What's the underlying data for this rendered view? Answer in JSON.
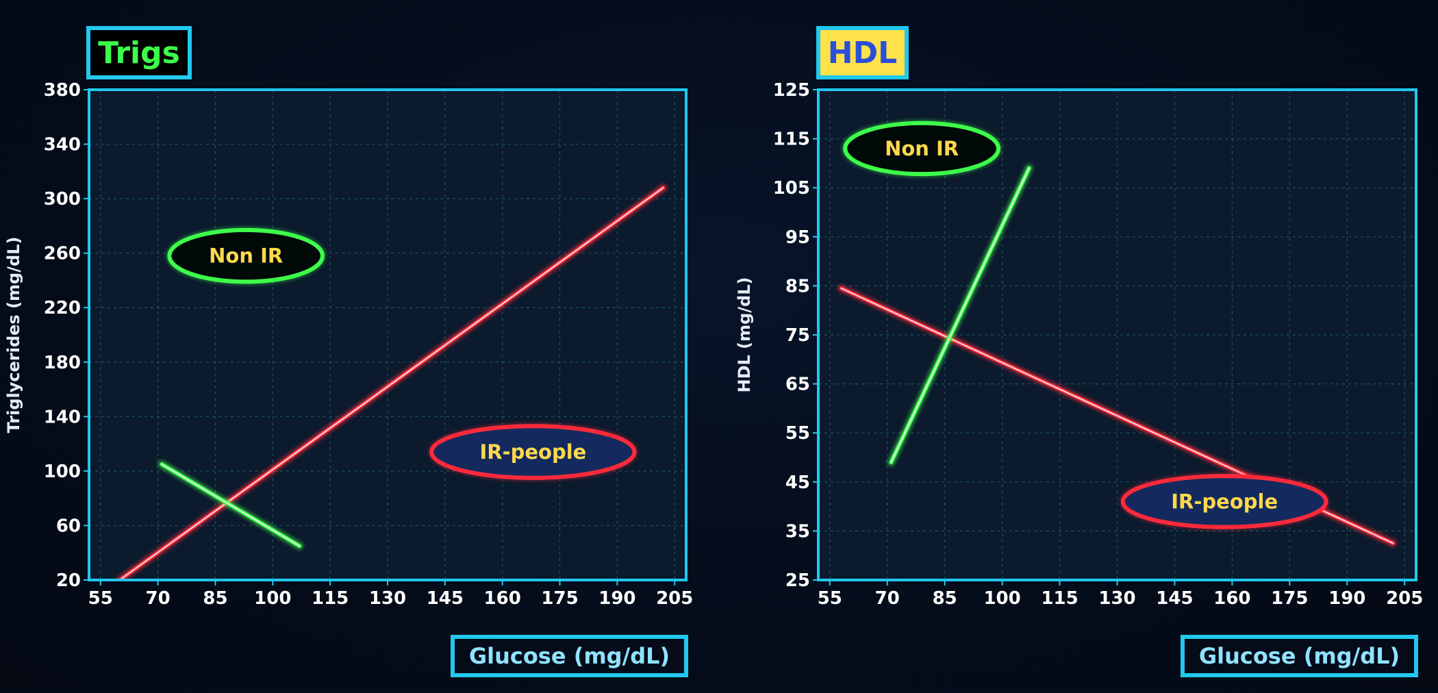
{
  "colors": {
    "frame": "#22c8ee",
    "grid": "#1d5560",
    "plot_bg": "#0b1a2d",
    "ir_line": "#ff2a3a",
    "non_ir_line": "#3dff4a",
    "label_text": "#ffd84d",
    "tick_text": "#ffffff"
  },
  "chart_data": [
    {
      "type": "line",
      "title": "Trigs",
      "title_style": {
        "text_color": "#3dff4a",
        "fill": "#000000"
      },
      "xlabel": "Glucose  (mg/dL)",
      "ylabel": "Triglycerides  (mg/dL)",
      "xlim": [
        52,
        208
      ],
      "ylim": [
        20,
        380
      ],
      "xticks": [
        55,
        70,
        85,
        100,
        115,
        130,
        145,
        160,
        175,
        190,
        205
      ],
      "yticks": [
        20,
        60,
        100,
        140,
        180,
        220,
        260,
        300,
        340,
        380
      ],
      "grid": true,
      "series": [
        {
          "key": "ir",
          "color": "#ff2a3a",
          "x": [
            60,
            202
          ],
          "y": [
            20,
            308
          ]
        },
        {
          "key": "nonir",
          "color": "#3dff4a",
          "x": [
            71,
            107
          ],
          "y": [
            105,
            45
          ]
        }
      ],
      "annotations": [
        {
          "text": "Non IR",
          "x": 93,
          "y": 258,
          "rx": 20,
          "ry": 19,
          "style": "non_ir"
        },
        {
          "text": "IR-people",
          "x": 168,
          "y": 114,
          "rx": 26.5,
          "ry": 19,
          "style": "ir"
        }
      ]
    },
    {
      "type": "line",
      "title": "HDL",
      "title_style": {
        "text_color": "#2a4fdb",
        "fill": "#ffe24a"
      },
      "xlabel": "Glucose  (mg/dL)",
      "ylabel": "HDL  (mg/dL)",
      "xlim": [
        52,
        208
      ],
      "ylim": [
        25,
        125
      ],
      "xticks": [
        55,
        70,
        85,
        100,
        115,
        130,
        145,
        160,
        175,
        190,
        205
      ],
      "yticks": [
        25,
        35,
        45,
        55,
        65,
        75,
        85,
        95,
        105,
        115,
        125
      ],
      "grid": true,
      "series": [
        {
          "key": "ir",
          "color": "#ff2a3a",
          "x": [
            58,
            202
          ],
          "y": [
            84.5,
            32.5
          ]
        },
        {
          "key": "nonir",
          "color": "#3dff4a",
          "x": [
            71,
            107
          ],
          "y": [
            49,
            109
          ]
        }
      ],
      "annotations": [
        {
          "text": "Non IR",
          "x": 79,
          "y": 113,
          "rx": 20,
          "ry": 5.2,
          "style": "non_ir"
        },
        {
          "text": "IR-people",
          "x": 158,
          "y": 41,
          "rx": 26.5,
          "ry": 5.2,
          "style": "ir"
        }
      ]
    }
  ]
}
